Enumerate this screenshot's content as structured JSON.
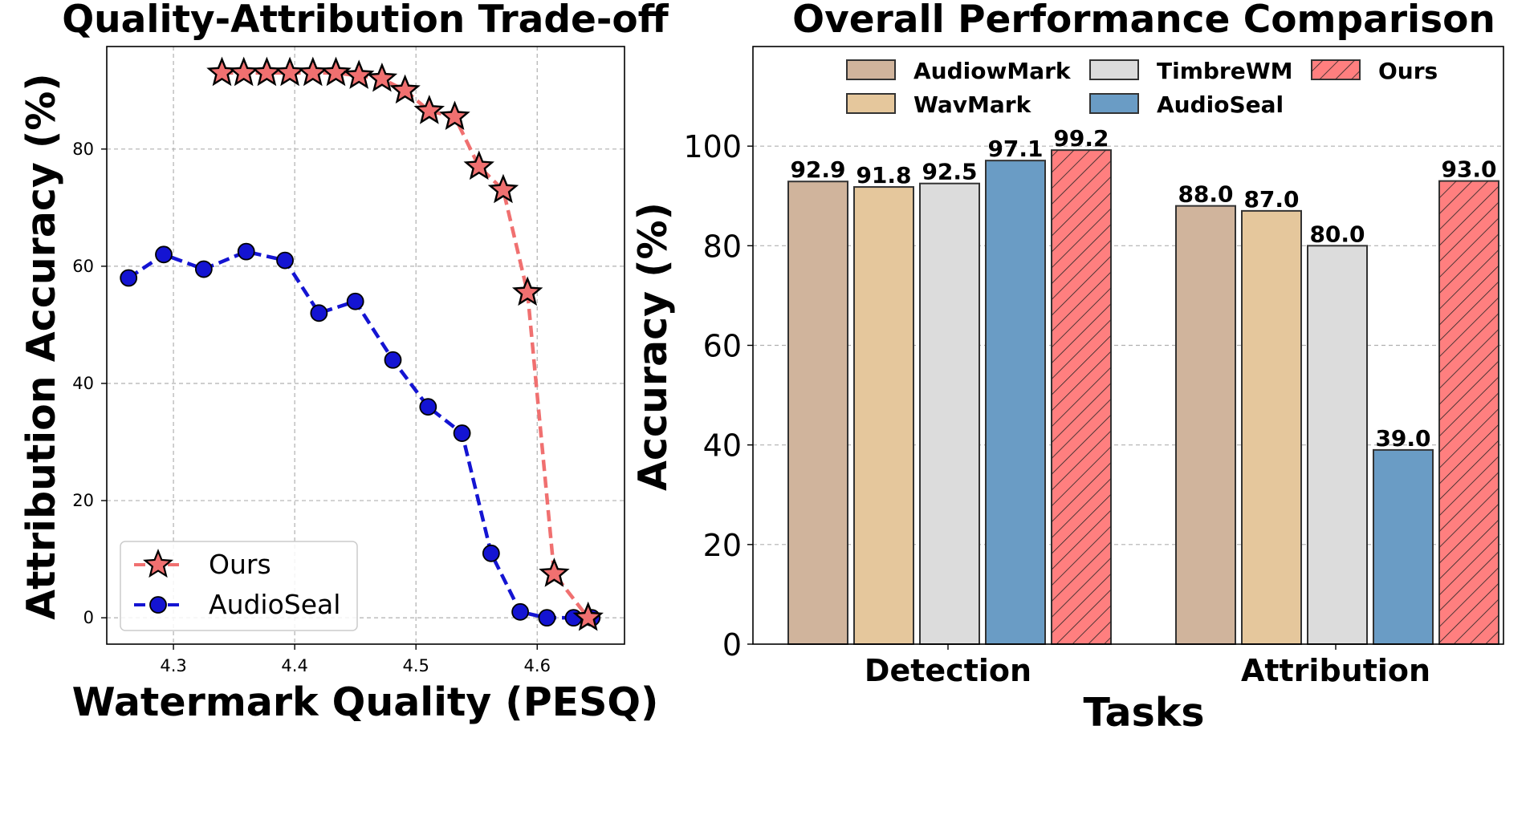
{
  "chart_data": [
    {
      "type": "line",
      "title": "Quality-Attribution Trade-off",
      "xlabel": "Watermark Quality (PESQ)",
      "ylabel": "Attribution Accuracy (%)",
      "xlim": [
        4.245,
        4.672
      ],
      "ylim": [
        -4.5,
        97.5
      ],
      "xticks": [
        4.3,
        4.4,
        4.5,
        4.6
      ],
      "yticks": [
        0,
        20,
        40,
        60,
        80
      ],
      "grid": true,
      "legend_position": "lower-left",
      "series": [
        {
          "name": "Ours",
          "color": "#f07070",
          "marker": "star",
          "linestyle": "dashed",
          "x": [
            4.34,
            4.358,
            4.377,
            4.396,
            4.415,
            4.434,
            4.453,
            4.472,
            4.491,
            4.511,
            4.532,
            4.552,
            4.572,
            4.592,
            4.614,
            4.642
          ],
          "y": [
            93.0,
            93.0,
            93.0,
            93.0,
            93.0,
            93.0,
            92.5,
            92.0,
            90.0,
            86.5,
            85.5,
            77.0,
            73.0,
            55.5,
            7.5,
            0.0
          ]
        },
        {
          "name": "AudioSeal",
          "color": "#1414d2",
          "marker": "circle",
          "linestyle": "dashed",
          "x": [
            4.263,
            4.292,
            4.325,
            4.36,
            4.392,
            4.42,
            4.45,
            4.481,
            4.51,
            4.538,
            4.562,
            4.586,
            4.608,
            4.63,
            4.645
          ],
          "y": [
            58.0,
            62.0,
            59.5,
            62.5,
            61.0,
            52.0,
            54.0,
            44.0,
            36.0,
            31.5,
            11.0,
            1.0,
            0.0,
            0.0,
            0.0
          ]
        }
      ]
    },
    {
      "type": "bar",
      "title": "Overall Performance Comparison",
      "xlabel": "Tasks",
      "ylabel": "Accuracy (%)",
      "ylim": [
        0,
        120
      ],
      "yticks": [
        0,
        20,
        40,
        60,
        80,
        100
      ],
      "grid": true,
      "legend_position": "top",
      "categories": [
        "Detection",
        "Attribution"
      ],
      "series": [
        {
          "name": "AudiowMark",
          "color": "#d0b49c",
          "hatch": false,
          "values": [
            92.9,
            88.0
          ],
          "labels": [
            "92.9",
            "88.0"
          ]
        },
        {
          "name": "WavMark",
          "color": "#e5c79c",
          "hatch": false,
          "values": [
            91.8,
            87.0
          ],
          "labels": [
            "91.8",
            "87.0"
          ]
        },
        {
          "name": "TimbreWM",
          "color": "#dcdcdc",
          "hatch": false,
          "values": [
            92.5,
            80.0
          ],
          "labels": [
            "92.5",
            "80.0"
          ]
        },
        {
          "name": "AudioSeal",
          "color": "#6a9cc5",
          "hatch": false,
          "values": [
            97.1,
            39.0
          ],
          "labels": [
            "97.1",
            "39.0"
          ]
        },
        {
          "name": "Ours",
          "color": "#ff7f7f",
          "hatch": true,
          "values": [
            99.2,
            93.0
          ],
          "labels": [
            "99.2",
            "93.0"
          ]
        }
      ]
    }
  ]
}
